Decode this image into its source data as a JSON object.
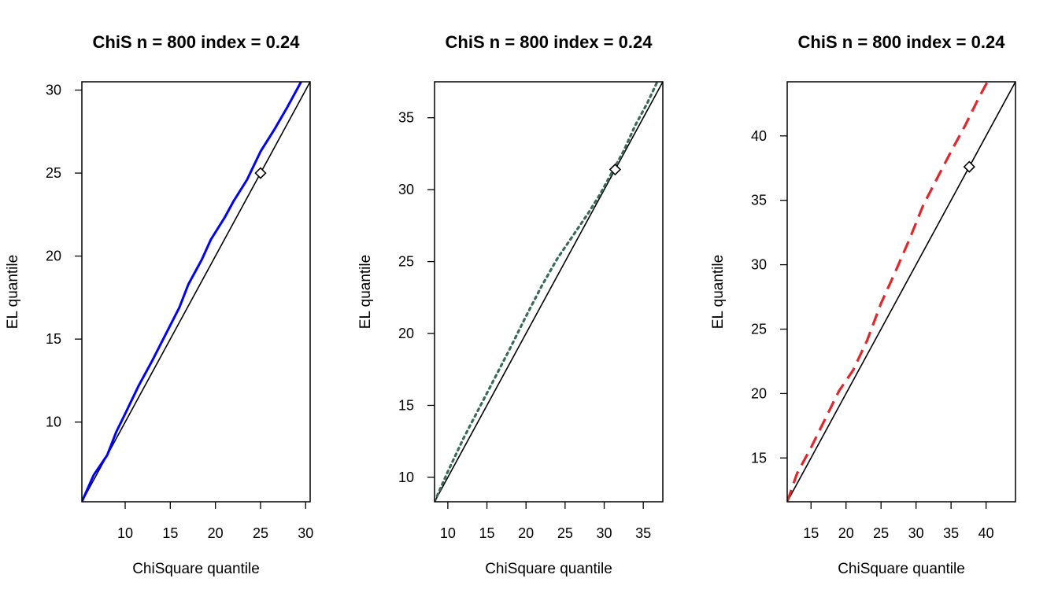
{
  "chart_data": [
    {
      "type": "line",
      "title": "ChiS n = 800 index = 0.24",
      "xlabel": "ChiSquare quantile",
      "ylabel": "EL quantile",
      "xlim": [
        5.2,
        30.5
      ],
      "ylim": [
        5.2,
        30.5
      ],
      "xticks": [
        10,
        15,
        20,
        25,
        30
      ],
      "yticks": [
        10,
        15,
        20,
        25,
        30
      ],
      "reference_line": "y = x",
      "marker_point": [
        25,
        25
      ],
      "series": [
        {
          "color": "#0000ff",
          "linestyle": "solid",
          "x": [
            5.2,
            6.5,
            8.0,
            9.0,
            10.0,
            11.5,
            13.0,
            14.5,
            16.0,
            17.0,
            18.5,
            19.5,
            21.0,
            22.0,
            23.5,
            25.0,
            26.5,
            28.0,
            29.5
          ],
          "y": [
            5.2,
            6.8,
            8.0,
            9.4,
            10.5,
            12.2,
            13.7,
            15.3,
            16.9,
            18.3,
            19.8,
            21.0,
            22.3,
            23.3,
            24.6,
            26.3,
            27.6,
            29.0,
            30.5
          ]
        }
      ]
    },
    {
      "type": "line",
      "title": "ChiS n = 800 index = 0.24",
      "xlabel": "ChiSquare quantile",
      "ylabel": "EL quantile",
      "xlim": [
        8.3,
        37.5
      ],
      "ylim": [
        8.3,
        37.5
      ],
      "xticks": [
        10,
        15,
        20,
        25,
        30,
        35
      ],
      "yticks": [
        10,
        15,
        20,
        25,
        30,
        35
      ],
      "reference_line": "y = x",
      "marker_point": [
        31.4,
        31.4
      ],
      "series": [
        {
          "color": "#3a6b5a",
          "linestyle": "dotted",
          "x": [
            8.3,
            10.0,
            12.0,
            14.0,
            16.0,
            18.0,
            20.0,
            22.0,
            24.0,
            26.0,
            28.0,
            29.5,
            31.0,
            32.5,
            34.0,
            35.5,
            36.8
          ],
          "y": [
            8.3,
            10.4,
            12.7,
            14.8,
            16.9,
            19.0,
            21.2,
            23.3,
            25.2,
            26.8,
            28.4,
            29.7,
            31.2,
            32.7,
            34.5,
            36.0,
            37.5
          ]
        }
      ]
    },
    {
      "type": "line",
      "title": "ChiS n = 800 index = 0.24",
      "xlabel": "ChiSquare quantile",
      "ylabel": "EL quantile",
      "xlim": [
        11.6,
        44.2
      ],
      "ylim": [
        11.6,
        44.2
      ],
      "xticks": [
        15,
        20,
        25,
        30,
        35,
        40
      ],
      "yticks": [
        15,
        20,
        25,
        30,
        35,
        40
      ],
      "reference_line": "y = x",
      "marker_point": [
        37.6,
        37.6
      ],
      "series": [
        {
          "color": "#e3262c",
          "linestyle": "dashed",
          "x": [
            11.6,
            13.0,
            15.0,
            17.0,
            19.0,
            21.0,
            23.0,
            25.0,
            27.0,
            29.0,
            31.0,
            33.0,
            35.0,
            37.0,
            39.0,
            40.2
          ],
          "y": [
            11.6,
            13.8,
            15.8,
            18.0,
            20.2,
            21.8,
            24.1,
            27.0,
            29.4,
            31.9,
            34.6,
            36.7,
            38.8,
            40.8,
            43.0,
            44.2
          ]
        }
      ]
    }
  ]
}
